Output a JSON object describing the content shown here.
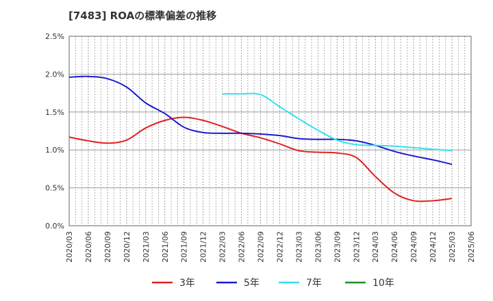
{
  "chart_data": {
    "type": "line",
    "title": "[7483]  ROAの標準偏差の推移",
    "xlabel": "",
    "ylabel": "",
    "ylim": [
      0,
      0.025
    ],
    "grid": true,
    "legend_position": "bottom",
    "x": [
      "2020/03",
      "2020/06",
      "2020/09",
      "2020/12",
      "2021/03",
      "2021/06",
      "2021/09",
      "2021/12",
      "2022/03",
      "2022/06",
      "2022/09",
      "2022/12",
      "2023/03",
      "2023/06",
      "2023/09",
      "2023/12",
      "2024/03",
      "2024/06",
      "2024/09",
      "2024/12",
      "2025/03",
      "2025/06"
    ],
    "y_ticks": [
      "0.0%",
      "0.5%",
      "1.0%",
      "1.5%",
      "2.0%",
      "2.5%"
    ],
    "series": [
      {
        "name": "3年",
        "color": "#e02020",
        "values": [
          0.0117,
          0.0112,
          0.0109,
          0.0113,
          0.0129,
          0.0139,
          0.0143,
          0.0139,
          0.0131,
          0.0122,
          0.0116,
          0.0108,
          0.0099,
          0.0097,
          0.0096,
          0.009,
          0.0065,
          0.0043,
          0.0033,
          0.0033,
          0.0036,
          null
        ]
      },
      {
        "name": "5年",
        "color": "#1a1ad0",
        "values": [
          0.0196,
          0.0197,
          0.0194,
          0.0183,
          0.0162,
          0.0148,
          0.013,
          0.0123,
          0.0122,
          0.0122,
          0.0121,
          0.0119,
          0.0115,
          0.0114,
          0.0114,
          0.0112,
          0.0106,
          0.0098,
          0.0092,
          0.0087,
          0.0081,
          null
        ]
      },
      {
        "name": "7年",
        "color": "#33e0f0",
        "values": [
          null,
          null,
          null,
          null,
          null,
          null,
          null,
          null,
          0.0174,
          0.0174,
          0.0173,
          0.0157,
          0.0141,
          0.0126,
          0.0113,
          0.0107,
          0.0106,
          0.0105,
          0.0103,
          0.0101,
          0.0099,
          null
        ]
      },
      {
        "name": "10年",
        "color": "#228b22",
        "values": [
          null,
          null,
          null,
          null,
          null,
          null,
          null,
          null,
          null,
          null,
          null,
          null,
          null,
          null,
          null,
          null,
          null,
          null,
          null,
          null,
          null,
          null
        ]
      }
    ]
  }
}
